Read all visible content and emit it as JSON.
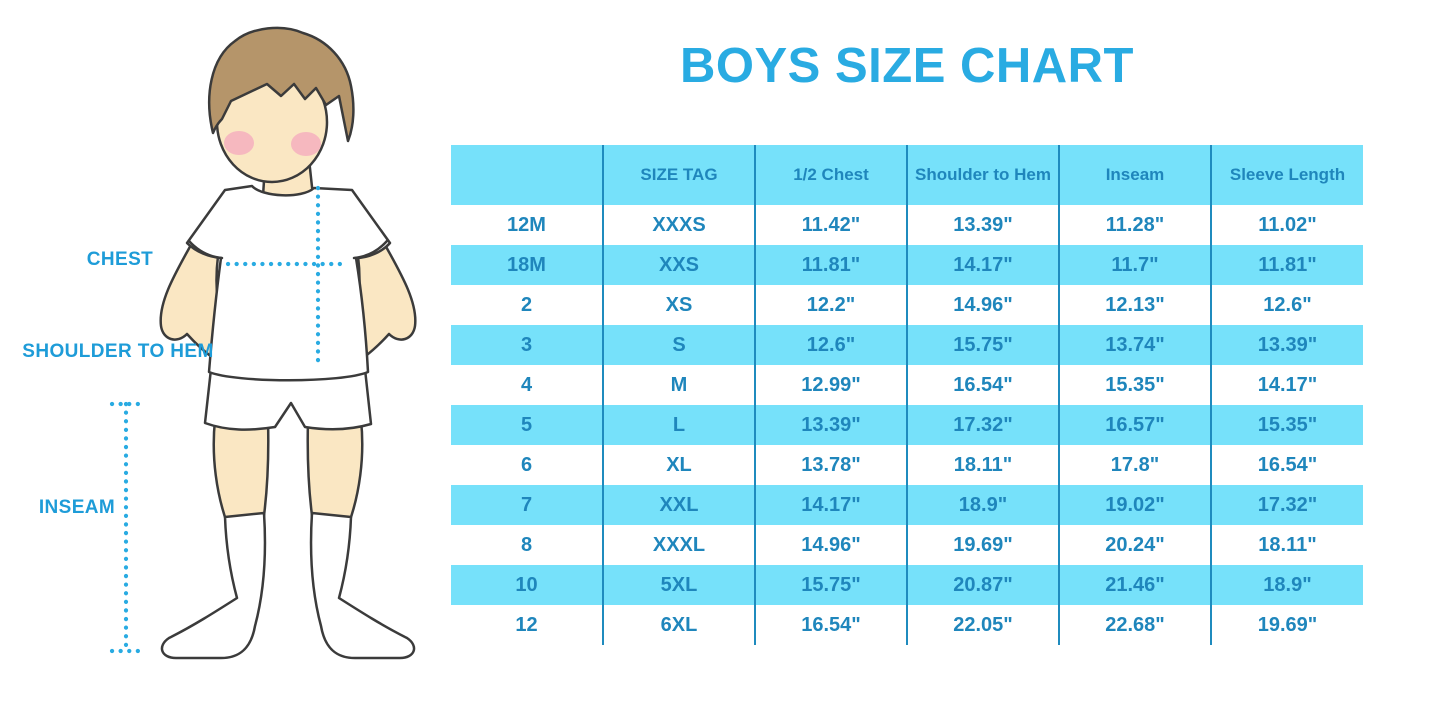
{
  "title": "BOYS SIZE CHART",
  "figure": {
    "description": "boy in white t-shirt, shorts and knee socks with dotted measurement guides",
    "labels": {
      "chest": "CHEST",
      "shoulder_to_hem": "SHOULDER TO HEM",
      "inseam": "INSEAM"
    }
  },
  "chart_data": {
    "type": "table",
    "title": "BOYS SIZE CHART",
    "headers": [
      "",
      "SIZE TAG",
      "1/2 Chest",
      "Shoulder to Hem",
      "Inseam",
      "Sleeve Length"
    ],
    "rows": [
      [
        "12M",
        "XXXS",
        "11.42\"",
        "13.39\"",
        "11.28\"",
        "11.02\""
      ],
      [
        "18M",
        "XXS",
        "11.81\"",
        "14.17\"",
        "11.7\"",
        "11.81\""
      ],
      [
        "2",
        "XS",
        "12.2\"",
        "14.96\"",
        "12.13\"",
        "12.6\""
      ],
      [
        "3",
        "S",
        "12.6\"",
        "15.75\"",
        "13.74\"",
        "13.39\""
      ],
      [
        "4",
        "M",
        "12.99\"",
        "16.54\"",
        "15.35\"",
        "14.17\""
      ],
      [
        "5",
        "L",
        "13.39\"",
        "17.32\"",
        "16.57\"",
        "15.35\""
      ],
      [
        "6",
        "XL",
        "13.78\"",
        "18.11\"",
        "17.8\"",
        "16.54\""
      ],
      [
        "7",
        "XXL",
        "14.17\"",
        "18.9\"",
        "19.02\"",
        "17.32\""
      ],
      [
        "8",
        "XXXL",
        "14.96\"",
        "19.69\"",
        "20.24\"",
        "18.11\""
      ],
      [
        "10",
        "5XL",
        "15.75\"",
        "20.87\"",
        "21.46\"",
        "18.9\""
      ],
      [
        "12",
        "6XL",
        "16.54\"",
        "22.05\"",
        "22.68\"",
        "19.69\""
      ]
    ],
    "layout": {
      "header_fill": "striped light blue",
      "row_striping": "white / light blue alternating starting white",
      "column_dividers": true,
      "outer_border": false
    }
  },
  "colors": {
    "accent_blue": "#29ABE2",
    "stripe_blue": "#76E1FA",
    "table_text_blue": "#1F86BC",
    "grid_line_blue": "#1F8BBE",
    "label_blue": "#1E9CD8",
    "skin": "#FAE7C3",
    "hair": "#B5956A",
    "blush": "#F4AFBE",
    "outline": "#3B3B3B"
  }
}
